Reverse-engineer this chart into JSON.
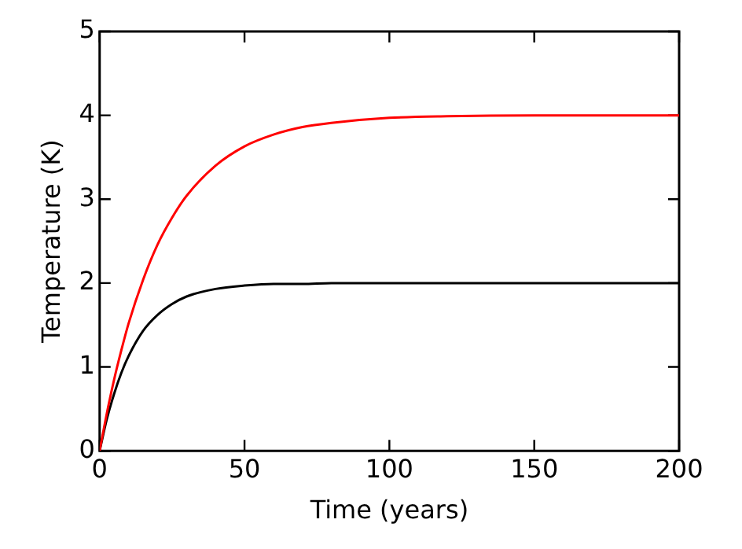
{
  "chart_data": {
    "type": "line",
    "xlabel": "Time (years)",
    "ylabel": "Temperature (K)",
    "xlim": [
      0,
      200
    ],
    "xticks": [
      0,
      50,
      100,
      150,
      200
    ],
    "ylim": [
      0,
      5
    ],
    "yticks": [
      0,
      1,
      2,
      3,
      4,
      5
    ],
    "grid": false,
    "legend": false,
    "marker": "none",
    "line_style": "solid",
    "x": [
      0,
      2.5,
      5,
      7.5,
      10,
      15,
      20,
      25,
      30,
      40,
      50,
      60,
      70,
      80,
      100,
      120,
      150,
      200
    ],
    "series": [
      {
        "color": "#ff0000",
        "values": [
          0,
          0.45,
          0.85,
          1.2,
          1.52,
          2.04,
          2.46,
          2.78,
          3.04,
          3.4,
          3.63,
          3.77,
          3.86,
          3.91,
          3.97,
          3.99,
          4.0,
          4.0
        ]
      },
      {
        "color": "#000000",
        "values": [
          0,
          0.38,
          0.68,
          0.93,
          1.13,
          1.43,
          1.62,
          1.75,
          1.84,
          1.93,
          1.97,
          1.99,
          1.99,
          2.0,
          2.0,
          2.0,
          2.0,
          2.0
        ]
      }
    ]
  }
}
